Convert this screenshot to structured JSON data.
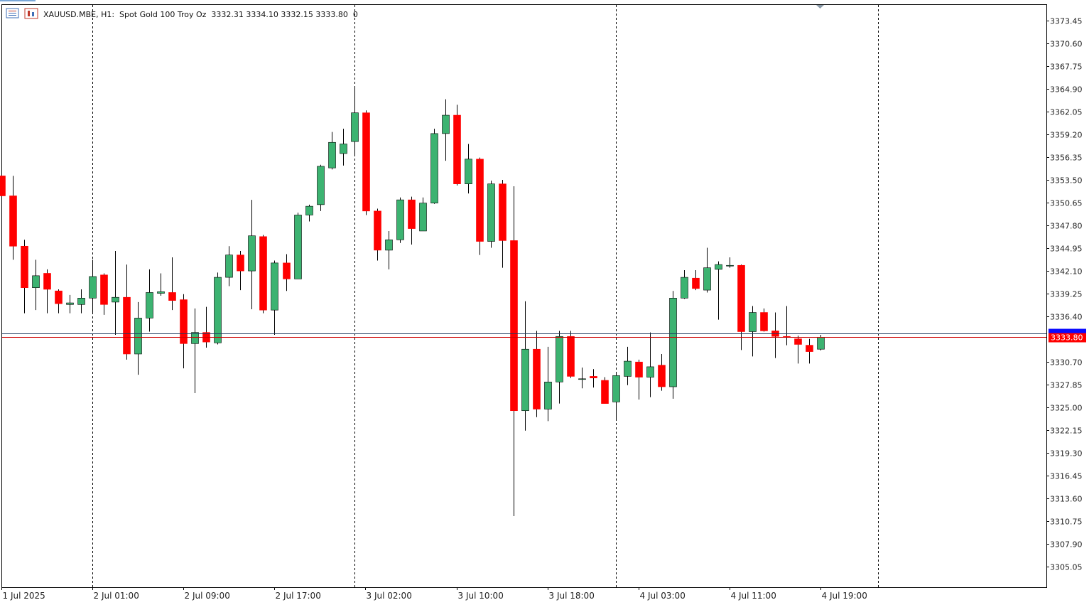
{
  "header": {
    "symbol_line": "XAUUSD.MBE, H1:  Spot Gold 100 Troy Oz  3332.31 3334.10 3332.15 3333.80  0"
  },
  "colors": {
    "bull": "#3cb371",
    "bear": "#ff0000",
    "wick": "#000000",
    "bid_line": "#cc0000",
    "ask_line": "#1e3a5f",
    "price_tag_bg": "#ff0000",
    "ask_tag_bg": "#0a0aff",
    "frame": "#000000",
    "grid_separator": "#000000"
  },
  "chart_data": {
    "type": "candlestick",
    "timeframe": "H1",
    "ylim": [
      3302.5,
      3375.4
    ],
    "y_ticks": [
      "3373.45",
      "3370.60",
      "3367.75",
      "3364.90",
      "3362.05",
      "3359.20",
      "3356.35",
      "3353.50",
      "3350.65",
      "3347.80",
      "3344.95",
      "3342.10",
      "3339.25",
      "3336.40",
      "3330.70",
      "3327.85",
      "3325.00",
      "3322.15",
      "3319.30",
      "3316.45",
      "3313.60",
      "3310.75",
      "3307.90",
      "3305.05"
    ],
    "x_labels": [
      "1 Jul 2025",
      "2 Jul 01:00",
      "2 Jul 09:00",
      "2 Jul 17:00",
      "3 Jul 02:00",
      "3 Jul 10:00",
      "3 Jul 18:00",
      "4 Jul 03:00",
      "4 Jul 11:00",
      "4 Jul 19:00"
    ],
    "day_separators_after_index": [
      7,
      30,
      53,
      76
    ],
    "bid_price": 3333.8,
    "bid_label": "3333.80",
    "ask_price": 3334.3,
    "candles": [
      {
        "o": 3354.0,
        "h": 3354.8,
        "l": 3350.9,
        "c": 3351.5
      },
      {
        "o": 3351.5,
        "h": 3354.0,
        "l": 3343.5,
        "c": 3345.2
      },
      {
        "o": 3345.2,
        "h": 3346.0,
        "l": 3336.8,
        "c": 3340.0
      },
      {
        "o": 3340.0,
        "h": 3343.5,
        "l": 3337.2,
        "c": 3341.5
      },
      {
        "o": 3341.8,
        "h": 3342.3,
        "l": 3336.8,
        "c": 3339.8
      },
      {
        "o": 3339.6,
        "h": 3339.8,
        "l": 3336.8,
        "c": 3338.0
      },
      {
        "o": 3337.9,
        "h": 3339.1,
        "l": 3336.8,
        "c": 3338.1
      },
      {
        "o": 3337.9,
        "h": 3339.8,
        "l": 3336.8,
        "c": 3338.7
      },
      {
        "o": 3338.7,
        "h": 3343.5,
        "l": 3336.8,
        "c": 3341.4
      },
      {
        "o": 3341.6,
        "h": 3341.8,
        "l": 3336.6,
        "c": 3337.9
      },
      {
        "o": 3338.2,
        "h": 3344.6,
        "l": 3334.1,
        "c": 3338.8
      },
      {
        "o": 3338.8,
        "h": 3342.9,
        "l": 3331.0,
        "c": 3331.7
      },
      {
        "o": 3331.7,
        "h": 3338.2,
        "l": 3329.1,
        "c": 3336.2
      },
      {
        "o": 3336.2,
        "h": 3342.3,
        "l": 3334.5,
        "c": 3339.4
      },
      {
        "o": 3339.3,
        "h": 3341.8,
        "l": 3339.0,
        "c": 3339.5
      },
      {
        "o": 3339.4,
        "h": 3343.8,
        "l": 3337.2,
        "c": 3338.4
      },
      {
        "o": 3338.5,
        "h": 3339.2,
        "l": 3329.9,
        "c": 3333.0
      },
      {
        "o": 3333.0,
        "h": 3337.4,
        "l": 3326.8,
        "c": 3334.4
      },
      {
        "o": 3334.4,
        "h": 3337.6,
        "l": 3332.5,
        "c": 3333.2
      },
      {
        "o": 3333.1,
        "h": 3341.9,
        "l": 3332.9,
        "c": 3341.3
      },
      {
        "o": 3341.3,
        "h": 3345.2,
        "l": 3340.2,
        "c": 3344.1
      },
      {
        "o": 3344.1,
        "h": 3344.6,
        "l": 3339.7,
        "c": 3342.1
      },
      {
        "o": 3342.1,
        "h": 3351.0,
        "l": 3337.3,
        "c": 3346.5
      },
      {
        "o": 3346.4,
        "h": 3346.6,
        "l": 3336.8,
        "c": 3337.2
      },
      {
        "o": 3337.2,
        "h": 3343.4,
        "l": 3334.1,
        "c": 3343.1
      },
      {
        "o": 3343.1,
        "h": 3344.2,
        "l": 3339.6,
        "c": 3341.1
      },
      {
        "o": 3341.1,
        "h": 3349.4,
        "l": 3341.1,
        "c": 3349.1
      },
      {
        "o": 3349.1,
        "h": 3350.4,
        "l": 3348.3,
        "c": 3350.2
      },
      {
        "o": 3350.4,
        "h": 3355.4,
        "l": 3349.6,
        "c": 3355.2
      },
      {
        "o": 3355.0,
        "h": 3359.5,
        "l": 3354.8,
        "c": 3358.2
      },
      {
        "o": 3356.8,
        "h": 3359.9,
        "l": 3355.3,
        "c": 3358.0
      },
      {
        "o": 3358.3,
        "h": 3365.1,
        "l": 3356.7,
        "c": 3361.9
      },
      {
        "o": 3361.9,
        "h": 3362.2,
        "l": 3349.1,
        "c": 3349.6
      },
      {
        "o": 3349.6,
        "h": 3349.9,
        "l": 3343.4,
        "c": 3344.7
      },
      {
        "o": 3344.7,
        "h": 3347.1,
        "l": 3342.3,
        "c": 3346.0
      },
      {
        "o": 3346.0,
        "h": 3351.3,
        "l": 3345.6,
        "c": 3351.0
      },
      {
        "o": 3351.0,
        "h": 3351.4,
        "l": 3345.4,
        "c": 3347.4
      },
      {
        "o": 3347.1,
        "h": 3351.3,
        "l": 3347.1,
        "c": 3350.6
      },
      {
        "o": 3350.6,
        "h": 3359.9,
        "l": 3350.5,
        "c": 3359.3
      },
      {
        "o": 3359.3,
        "h": 3363.6,
        "l": 3355.9,
        "c": 3361.6
      },
      {
        "o": 3361.6,
        "h": 3362.9,
        "l": 3352.8,
        "c": 3353.0
      },
      {
        "o": 3353.0,
        "h": 3358.0,
        "l": 3351.8,
        "c": 3356.1
      },
      {
        "o": 3356.1,
        "h": 3356.3,
        "l": 3344.1,
        "c": 3345.8
      },
      {
        "o": 3345.8,
        "h": 3353.4,
        "l": 3345.0,
        "c": 3353.0
      },
      {
        "o": 3353.0,
        "h": 3353.5,
        "l": 3342.5,
        "c": 3345.9
      },
      {
        "o": 3345.9,
        "h": 3352.7,
        "l": 3311.4,
        "c": 3324.6
      },
      {
        "o": 3324.6,
        "h": 3338.3,
        "l": 3322.1,
        "c": 3332.3
      },
      {
        "o": 3332.3,
        "h": 3334.6,
        "l": 3323.8,
        "c": 3324.8
      },
      {
        "o": 3324.8,
        "h": 3332.6,
        "l": 3323.3,
        "c": 3328.2
      },
      {
        "o": 3328.2,
        "h": 3334.6,
        "l": 3325.5,
        "c": 3333.9
      },
      {
        "o": 3333.9,
        "h": 3334.6,
        "l": 3328.7,
        "c": 3328.9
      },
      {
        "o": 3328.6,
        "h": 3330.0,
        "l": 3327.4,
        "c": 3328.6
      },
      {
        "o": 3328.9,
        "h": 3329.8,
        "l": 3327.5,
        "c": 3328.7
      },
      {
        "o": 3328.4,
        "h": 3328.8,
        "l": 3325.5,
        "c": 3325.5
      },
      {
        "o": 3325.7,
        "h": 3329.3,
        "l": 3323.5,
        "c": 3329.0
      },
      {
        "o": 3328.9,
        "h": 3332.6,
        "l": 3327.8,
        "c": 3330.8
      },
      {
        "o": 3330.7,
        "h": 3331.0,
        "l": 3326.0,
        "c": 3328.8
      },
      {
        "o": 3328.8,
        "h": 3334.4,
        "l": 3326.3,
        "c": 3330.1
      },
      {
        "o": 3330.3,
        "h": 3331.7,
        "l": 3327.1,
        "c": 3327.6
      },
      {
        "o": 3327.6,
        "h": 3339.6,
        "l": 3326.1,
        "c": 3338.7
      },
      {
        "o": 3338.7,
        "h": 3342.2,
        "l": 3338.6,
        "c": 3341.3
      },
      {
        "o": 3341.2,
        "h": 3342.2,
        "l": 3339.7,
        "c": 3339.9
      },
      {
        "o": 3339.7,
        "h": 3345.0,
        "l": 3339.4,
        "c": 3342.5
      },
      {
        "o": 3342.3,
        "h": 3343.3,
        "l": 3336.0,
        "c": 3342.9
      },
      {
        "o": 3342.8,
        "h": 3343.8,
        "l": 3342.5,
        "c": 3342.8
      },
      {
        "o": 3342.8,
        "h": 3342.9,
        "l": 3332.2,
        "c": 3334.5
      },
      {
        "o": 3334.5,
        "h": 3337.7,
        "l": 3331.4,
        "c": 3336.9
      },
      {
        "o": 3336.9,
        "h": 3337.4,
        "l": 3334.5,
        "c": 3334.6
      },
      {
        "o": 3334.6,
        "h": 3336.9,
        "l": 3331.2,
        "c": 3333.9
      },
      {
        "o": 3333.9,
        "h": 3337.7,
        "l": 3332.8,
        "c": 3333.8
      },
      {
        "o": 3333.6,
        "h": 3334.0,
        "l": 3330.5,
        "c": 3332.9
      },
      {
        "o": 3332.8,
        "h": 3333.6,
        "l": 3330.5,
        "c": 3332.0
      },
      {
        "o": 3332.3,
        "h": 3334.1,
        "l": 3332.15,
        "c": 3333.8
      }
    ]
  }
}
